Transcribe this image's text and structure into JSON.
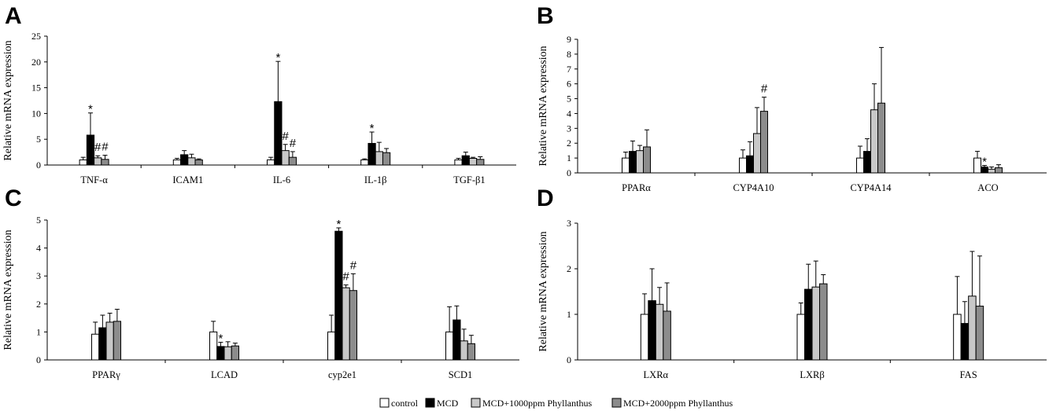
{
  "legend": [
    {
      "label": "control",
      "color": "#ffffff"
    },
    {
      "label": "MCD",
      "color": "#000000"
    },
    {
      "label": "MCD+1000ppm Phyllanthus",
      "color": "#c8c8c8"
    },
    {
      "label": "MCD+2000ppm Phyllanthus",
      "color": "#8c8c8c"
    }
  ],
  "chart_data": [
    {
      "panel": "A",
      "type": "bar",
      "ylabel": "Relative mRNA expression",
      "ylim": [
        0,
        25
      ],
      "yticks": [
        0,
        5,
        10,
        15,
        20,
        25
      ],
      "categories": [
        "TNF-α",
        "ICAM1",
        "IL-6",
        "IL-1β",
        "TGF-β1"
      ],
      "series": [
        {
          "name": "control",
          "values": [
            1,
            1,
            1,
            1,
            1
          ],
          "errors": [
            0.5,
            0.3,
            0.5,
            0.2,
            0.3
          ],
          "marks": [
            "",
            "",
            "",
            "",
            ""
          ]
        },
        {
          "name": "MCD",
          "values": [
            5.8,
            2.0,
            12.3,
            4.2,
            1.8
          ],
          "errors": [
            4.3,
            0.8,
            7.8,
            2.2,
            0.7
          ],
          "marks": [
            "*",
            "",
            "*",
            "*",
            ""
          ]
        },
        {
          "name": "MCD+1000ppm Phyllanthus",
          "values": [
            1.4,
            1.4,
            2.8,
            2.6,
            1.3
          ],
          "errors": [
            0.4,
            0.7,
            1.2,
            1.8,
            0.2
          ],
          "marks": [
            "#",
            "",
            "#",
            "",
            ""
          ]
        },
        {
          "name": "MCD+2000ppm Phyllanthus",
          "values": [
            1.1,
            1.0,
            1.5,
            2.4,
            1.1
          ],
          "errors": [
            0.8,
            0.2,
            1.1,
            0.8,
            0.5
          ],
          "marks": [
            "#",
            "",
            "#",
            "",
            ""
          ]
        }
      ]
    },
    {
      "panel": "B",
      "type": "bar",
      "ylabel": "Relative mRNA expression",
      "ylim": [
        0,
        9
      ],
      "yticks": [
        0,
        1,
        2,
        3,
        4,
        5,
        6,
        7,
        8,
        9
      ],
      "categories": [
        "PPARα",
        "CYP4A10",
        "CYP4A14",
        "ACO"
      ],
      "series": [
        {
          "name": "control",
          "values": [
            1,
            1,
            1,
            1
          ],
          "errors": [
            0.4,
            0.55,
            0.8,
            0.45
          ],
          "marks": [
            "",
            "",
            "",
            ""
          ]
        },
        {
          "name": "MCD",
          "values": [
            1.45,
            1.15,
            1.45,
            0.4
          ],
          "errors": [
            0.7,
            0.95,
            0.85,
            0.1
          ],
          "marks": [
            "",
            "",
            "",
            "*"
          ]
        },
        {
          "name": "MCD+1000ppm Phyllanthus",
          "values": [
            1.5,
            2.65,
            4.25,
            0.25
          ],
          "errors": [
            0.35,
            1.75,
            1.75,
            0.15
          ],
          "marks": [
            "",
            "",
            "",
            ""
          ]
        },
        {
          "name": "MCD+2000ppm Phyllanthus",
          "values": [
            1.75,
            4.15,
            4.7,
            0.35
          ],
          "errors": [
            1.15,
            0.95,
            3.75,
            0.2
          ],
          "marks": [
            "",
            "#",
            "",
            ""
          ]
        }
      ]
    },
    {
      "panel": "C",
      "type": "bar",
      "ylabel": "Relative mRNA expression",
      "ylim": [
        0,
        5
      ],
      "yticks": [
        0,
        1,
        2,
        3,
        4,
        5
      ],
      "categories": [
        "PPARγ",
        "LCAD",
        "cyp2e1",
        "SCD1"
      ],
      "series": [
        {
          "name": "control",
          "values": [
            0.92,
            1.0,
            1.0,
            1.0
          ],
          "errors": [
            0.43,
            0.38,
            0.6,
            0.9
          ],
          "marks": [
            "",
            "",
            "",
            ""
          ]
        },
        {
          "name": "MCD",
          "values": [
            1.15,
            0.48,
            4.6,
            1.43
          ],
          "errors": [
            0.45,
            0.15,
            0.12,
            0.5
          ],
          "marks": [
            "",
            "*",
            "*",
            ""
          ]
        },
        {
          "name": "MCD+1000ppm Phyllanthus",
          "values": [
            1.35,
            0.47,
            2.58,
            0.68
          ],
          "errors": [
            0.32,
            0.18,
            0.1,
            0.42
          ],
          "marks": [
            "",
            "",
            "#",
            ""
          ]
        },
        {
          "name": "MCD+2000ppm Phyllanthus",
          "values": [
            1.38,
            0.5,
            2.48,
            0.58
          ],
          "errors": [
            0.43,
            0.1,
            0.6,
            0.3
          ],
          "marks": [
            "",
            "",
            "#",
            ""
          ]
        }
      ]
    },
    {
      "panel": "D",
      "type": "bar",
      "ylabel": "Relative mRNA expression",
      "ylim": [
        0,
        3
      ],
      "yticks": [
        0,
        1,
        2,
        3
      ],
      "categories": [
        "LXRα",
        "LXRβ",
        "FAS"
      ],
      "series": [
        {
          "name": "control",
          "values": [
            1.0,
            1.0,
            1.0
          ],
          "errors": [
            0.45,
            0.25,
            0.83
          ],
          "marks": [
            "",
            "",
            ""
          ]
        },
        {
          "name": "MCD",
          "values": [
            1.3,
            1.55,
            0.8
          ],
          "errors": [
            0.7,
            0.55,
            0.48
          ],
          "marks": [
            "",
            "",
            ""
          ]
        },
        {
          "name": "MCD+1000ppm Phyllanthus",
          "values": [
            1.22,
            1.6,
            1.4
          ],
          "errors": [
            0.37,
            0.57,
            0.98
          ],
          "marks": [
            "",
            "",
            ""
          ]
        },
        {
          "name": "MCD+2000ppm Phyllanthus",
          "values": [
            1.07,
            1.67,
            1.18
          ],
          "errors": [
            0.62,
            0.2,
            1.1
          ],
          "marks": [
            "",
            "",
            ""
          ]
        }
      ]
    }
  ]
}
